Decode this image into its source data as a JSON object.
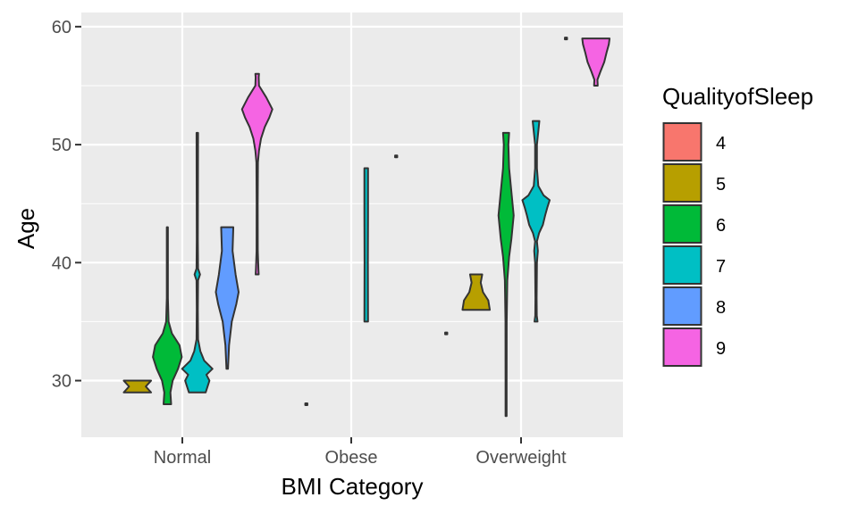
{
  "chart_data": {
    "type": "violin",
    "title": "",
    "xlabel": "BMI Category",
    "ylabel": "Age",
    "categories": [
      "Normal",
      "Obese",
      "Overweight"
    ],
    "y_ticks": [
      30,
      40,
      50,
      60
    ],
    "ylim": [
      25.2,
      61.2
    ],
    "grid": true,
    "legend": {
      "title": "QualityofSleep",
      "position": "right",
      "items": [
        {
          "label": "4",
          "color": "#F8766D"
        },
        {
          "label": "5",
          "color": "#B79F00"
        },
        {
          "label": "6",
          "color": "#00BA38"
        },
        {
          "label": "7",
          "color": "#00BFC4"
        },
        {
          "label": "8",
          "color": "#619CFF"
        },
        {
          "label": "9",
          "color": "#F564E3"
        }
      ]
    },
    "groups": [
      {
        "category": "Normal",
        "quality": "5",
        "min": 29,
        "max": 30,
        "profile": [
          [
            29,
            0.9
          ],
          [
            29.5,
            0.55
          ],
          [
            30,
            0.9
          ]
        ]
      },
      {
        "category": "Normal",
        "quality": "6",
        "min": 28,
        "max": 43,
        "profile": [
          [
            28,
            0.25
          ],
          [
            29,
            0.2
          ],
          [
            30,
            0.35
          ],
          [
            31,
            0.7
          ],
          [
            32,
            0.95
          ],
          [
            33,
            0.8
          ],
          [
            34,
            0.3
          ],
          [
            35,
            0.08
          ],
          [
            37,
            0.03
          ],
          [
            43,
            0.03
          ]
        ]
      },
      {
        "category": "Normal",
        "quality": "7",
        "min": 29,
        "max": 51,
        "profile": [
          [
            29,
            0.55
          ],
          [
            30,
            0.8
          ],
          [
            30.5,
            0.6
          ],
          [
            31,
            1.0
          ],
          [
            31.7,
            0.45
          ],
          [
            32.5,
            0.2
          ],
          [
            33.5,
            0.05
          ],
          [
            36,
            0.02
          ],
          [
            38.5,
            0.05
          ],
          [
            39,
            0.18
          ],
          [
            39.5,
            0.05
          ],
          [
            42,
            0.02
          ],
          [
            51,
            0.05
          ]
        ]
      },
      {
        "category": "Normal",
        "quality": "8",
        "min": 31,
        "max": 43,
        "profile": [
          [
            31,
            0.05
          ],
          [
            33,
            0.12
          ],
          [
            35,
            0.3
          ],
          [
            36.5,
            0.6
          ],
          [
            37.5,
            0.75
          ],
          [
            39,
            0.55
          ],
          [
            41,
            0.35
          ],
          [
            43,
            0.4
          ]
        ]
      },
      {
        "category": "Normal",
        "quality": "9",
        "min": 39,
        "max": 56,
        "profile": [
          [
            39,
            0.1
          ],
          [
            39.5,
            0.08
          ],
          [
            41,
            0.04
          ],
          [
            45,
            0.03
          ],
          [
            48.5,
            0.05
          ],
          [
            49.5,
            0.12
          ],
          [
            50.5,
            0.25
          ],
          [
            51.5,
            0.5
          ],
          [
            52.3,
            0.8
          ],
          [
            53,
            1.0
          ],
          [
            54,
            0.6
          ],
          [
            55,
            0.12
          ],
          [
            55.7,
            0.1
          ],
          [
            56,
            0.12
          ]
        ]
      },
      {
        "category": "Obese",
        "quality": "5",
        "min": 28,
        "max": 28,
        "profile": [
          [
            28,
            0.04
          ],
          [
            28,
            0.04
          ]
        ]
      },
      {
        "category": "Obese",
        "quality": "7",
        "min": 35,
        "max": 48,
        "profile": [
          [
            35,
            0.12
          ],
          [
            40,
            0.11
          ],
          [
            44,
            0.12
          ],
          [
            48,
            0.12
          ]
        ]
      },
      {
        "category": "Obese",
        "quality": "8",
        "min": 49,
        "max": 49,
        "profile": [
          [
            49,
            0.04
          ],
          [
            49,
            0.04
          ]
        ]
      },
      {
        "category": "Overweight",
        "quality": "4",
        "min": 34,
        "max": 34,
        "profile": [
          [
            34,
            0.04
          ],
          [
            34,
            0.04
          ]
        ]
      },
      {
        "category": "Overweight",
        "quality": "5",
        "min": 36,
        "max": 39,
        "profile": [
          [
            36,
            0.9
          ],
          [
            36.8,
            0.8
          ],
          [
            37.5,
            0.45
          ],
          [
            38.3,
            0.3
          ],
          [
            39,
            0.4
          ]
        ]
      },
      {
        "category": "Overweight",
        "quality": "6",
        "min": 27,
        "max": 51,
        "profile": [
          [
            27,
            0.02
          ],
          [
            30,
            0.03
          ],
          [
            35,
            0.04
          ],
          [
            38.5,
            0.08
          ],
          [
            40.5,
            0.2
          ],
          [
            42,
            0.35
          ],
          [
            44,
            0.5
          ],
          [
            46,
            0.35
          ],
          [
            48,
            0.2
          ],
          [
            50,
            0.15
          ],
          [
            51,
            0.2
          ]
        ]
      },
      {
        "category": "Overweight",
        "quality": "7",
        "min": 35,
        "max": 52,
        "profile": [
          [
            35,
            0.1
          ],
          [
            35.5,
            0.05
          ],
          [
            37,
            0.04
          ],
          [
            40,
            0.06
          ],
          [
            41,
            0.12
          ],
          [
            41.8,
            0.06
          ],
          [
            42.5,
            0.2
          ],
          [
            43.2,
            0.45
          ],
          [
            44,
            0.6
          ],
          [
            44.7,
            0.75
          ],
          [
            45.3,
            0.9
          ],
          [
            45.7,
            0.5
          ],
          [
            46.5,
            0.15
          ],
          [
            48,
            0.06
          ],
          [
            50,
            0.06
          ],
          [
            51.5,
            0.18
          ],
          [
            52,
            0.22
          ]
        ]
      },
      {
        "category": "Overweight",
        "quality": "8",
        "min": 59,
        "max": 59,
        "profile": [
          [
            59,
            0.04
          ],
          [
            59,
            0.04
          ]
        ]
      },
      {
        "category": "Overweight",
        "quality": "9",
        "min": 55,
        "max": 59,
        "profile": [
          [
            55,
            0.12
          ],
          [
            55.5,
            0.1
          ],
          [
            56.2,
            0.3
          ],
          [
            57,
            0.55
          ],
          [
            57.8,
            0.7
          ],
          [
            58.5,
            0.85
          ],
          [
            59,
            0.9
          ]
        ]
      }
    ]
  }
}
